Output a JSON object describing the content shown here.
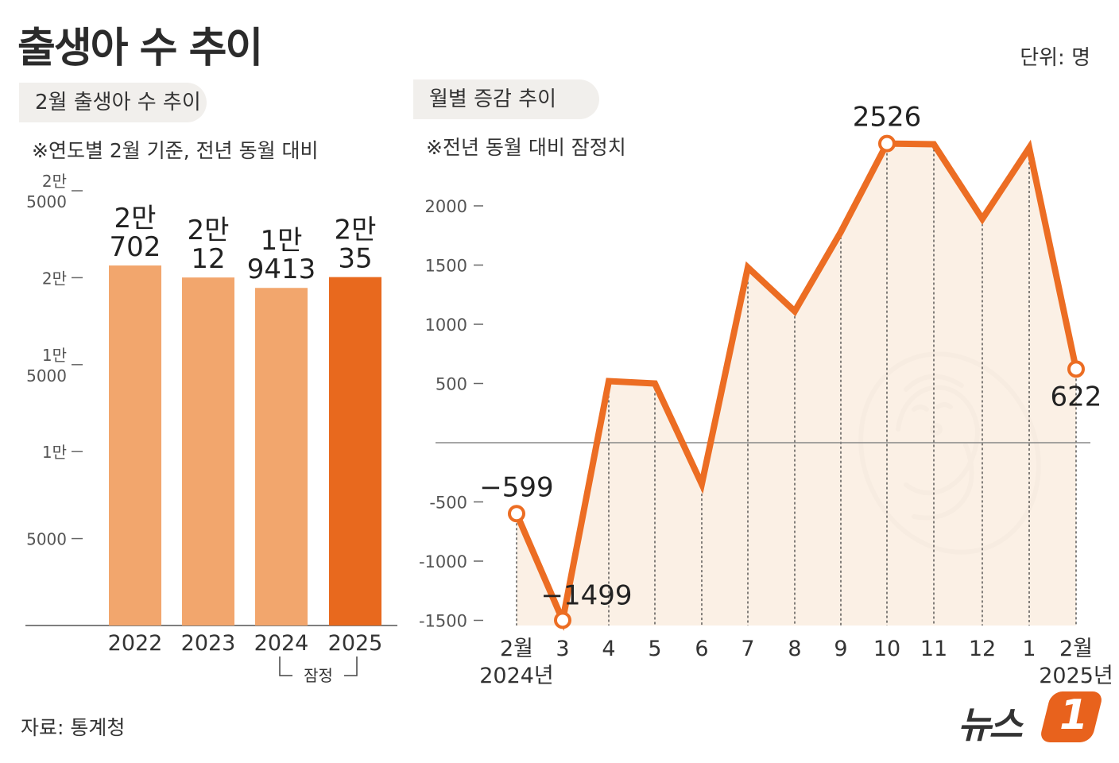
{
  "title": "출생아 수 추이",
  "unit": "단위: 명",
  "source": "자료: 통계청",
  "logo_text": "뉴스",
  "logo_number": "1",
  "colors": {
    "bar_light": "#f2a66d",
    "bar_dark": "#e8691e",
    "line": "#ec6d23",
    "area": "#fbeee2",
    "axis": "#888888"
  },
  "chart_data": [
    {
      "type": "bar",
      "title": "2월 출생아 수 추이",
      "note": "※연도별 2월 기준, 전년 동월 대비",
      "categories": [
        "2022",
        "2023",
        "2024",
        "2025"
      ],
      "values": [
        20702,
        20012,
        19413,
        20035
      ],
      "value_labels": [
        [
          "2만",
          "702"
        ],
        [
          "2만",
          "12"
        ],
        [
          "1만",
          "9413"
        ],
        [
          "2만",
          "35"
        ]
      ],
      "highlight_index": 3,
      "ylim": [
        0,
        25000
      ],
      "yticks": [
        {
          "value": 25000,
          "label": [
            "2만",
            "5000"
          ]
        },
        {
          "value": 20000,
          "label": [
            "2만"
          ]
        },
        {
          "value": 15000,
          "label": [
            "1만",
            "5000"
          ]
        },
        {
          "value": 10000,
          "label": [
            "1만"
          ]
        },
        {
          "value": 5000,
          "label": [
            "5000"
          ]
        }
      ],
      "annotation": "잠정"
    },
    {
      "type": "line",
      "title": "월별 증감 추이",
      "note": "※전년 동월 대비 잠정치",
      "categories": [
        [
          "2월",
          "2024년"
        ],
        [
          "3"
        ],
        [
          "4"
        ],
        [
          "5"
        ],
        [
          "6"
        ],
        [
          "7"
        ],
        [
          "8"
        ],
        [
          "9"
        ],
        [
          "10"
        ],
        [
          "11"
        ],
        [
          "12"
        ],
        [
          "1"
        ],
        [
          "2월",
          "2025년"
        ]
      ],
      "values": [
        -599,
        -1499,
        520,
        500,
        -350,
        1480,
        1110,
        1780,
        2526,
        2520,
        1890,
        2490,
        622
      ],
      "labeled_points": [
        {
          "index": 0,
          "label": "−599"
        },
        {
          "index": 1,
          "label": "−1499"
        },
        {
          "index": 8,
          "label": "2526"
        },
        {
          "index": 12,
          "label": "622"
        }
      ],
      "ylim": [
        -1500,
        2000
      ],
      "yticks": [
        2000,
        1500,
        1000,
        500,
        -500,
        -1000,
        -1500
      ]
    }
  ]
}
